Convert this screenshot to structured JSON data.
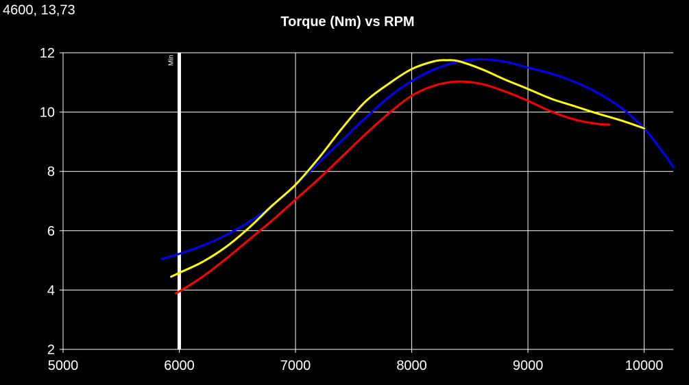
{
  "cursor_readout": "4600, 13,73",
  "chart_data": {
    "type": "line",
    "title": "Torque (Nm) vs RPM",
    "xlabel": "",
    "ylabel": "",
    "xlim": [
      5000,
      10250
    ],
    "ylim": [
      2,
      12
    ],
    "x_ticks": [
      5000,
      6000,
      7000,
      8000,
      9000,
      10000
    ],
    "y_ticks": [
      2,
      4,
      6,
      8,
      10,
      12
    ],
    "grid": true,
    "background": "#000000",
    "marker": {
      "label": "Min",
      "x": 6000,
      "color": "#ffffff"
    },
    "series": [
      {
        "color": "#0000ff",
        "points": [
          [
            5850,
            5.05
          ],
          [
            6000,
            5.22
          ],
          [
            6200,
            5.5
          ],
          [
            6400,
            5.85
          ],
          [
            6600,
            6.3
          ],
          [
            6800,
            6.85
          ],
          [
            7000,
            7.55
          ],
          [
            7200,
            8.3
          ],
          [
            7400,
            9.05
          ],
          [
            7600,
            9.8
          ],
          [
            7800,
            10.5
          ],
          [
            8000,
            11.05
          ],
          [
            8200,
            11.45
          ],
          [
            8400,
            11.7
          ],
          [
            8600,
            11.78
          ],
          [
            8800,
            11.7
          ],
          [
            9000,
            11.5
          ],
          [
            9200,
            11.3
          ],
          [
            9400,
            11.02
          ],
          [
            9600,
            10.65
          ],
          [
            9800,
            10.15
          ],
          [
            10000,
            9.45
          ],
          [
            10150,
            8.7
          ],
          [
            10250,
            8.15
          ]
        ]
      },
      {
        "color": "#ffff00",
        "points": [
          [
            5930,
            4.45
          ],
          [
            6000,
            4.58
          ],
          [
            6200,
            4.95
          ],
          [
            6400,
            5.45
          ],
          [
            6600,
            6.1
          ],
          [
            6800,
            6.85
          ],
          [
            7000,
            7.55
          ],
          [
            7200,
            8.45
          ],
          [
            7400,
            9.45
          ],
          [
            7600,
            10.35
          ],
          [
            7800,
            10.95
          ],
          [
            8000,
            11.45
          ],
          [
            8200,
            11.72
          ],
          [
            8300,
            11.75
          ],
          [
            8400,
            11.72
          ],
          [
            8600,
            11.45
          ],
          [
            8800,
            11.1
          ],
          [
            9000,
            10.78
          ],
          [
            9200,
            10.45
          ],
          [
            9400,
            10.2
          ],
          [
            9600,
            9.95
          ],
          [
            9800,
            9.72
          ],
          [
            10000,
            9.45
          ]
        ]
      },
      {
        "color": "#ff0000",
        "points": [
          [
            5970,
            3.9
          ],
          [
            6000,
            3.95
          ],
          [
            6200,
            4.45
          ],
          [
            6400,
            5.05
          ],
          [
            6600,
            5.7
          ],
          [
            6800,
            6.35
          ],
          [
            7000,
            7.05
          ],
          [
            7200,
            7.75
          ],
          [
            7400,
            8.5
          ],
          [
            7600,
            9.25
          ],
          [
            7800,
            9.95
          ],
          [
            8000,
            10.55
          ],
          [
            8200,
            10.9
          ],
          [
            8400,
            11.03
          ],
          [
            8600,
            10.95
          ],
          [
            8800,
            10.7
          ],
          [
            9000,
            10.38
          ],
          [
            9200,
            10.02
          ],
          [
            9400,
            9.75
          ],
          [
            9600,
            9.6
          ],
          [
            9700,
            9.58
          ]
        ]
      }
    ]
  }
}
